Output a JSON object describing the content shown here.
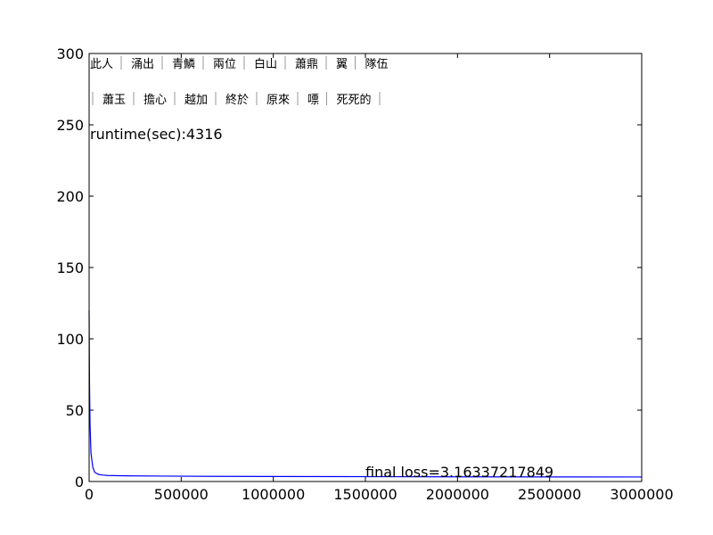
{
  "chart_data": {
    "type": "line",
    "title": "",
    "xlabel": "",
    "ylabel": "",
    "xlim": [
      0,
      3000000
    ],
    "ylim": [
      0,
      300
    ],
    "x_ticks": [
      0,
      500000,
      1000000,
      1500000,
      2000000,
      2500000,
      3000000
    ],
    "x_tick_labels": [
      "0",
      "500000",
      "1000000",
      "1500000",
      "2000000",
      "2500000",
      "3000000"
    ],
    "y_ticks": [
      0,
      50,
      100,
      150,
      200,
      250,
      300
    ],
    "y_tick_labels": [
      "0",
      "50",
      "100",
      "150",
      "200",
      "250",
      "300"
    ],
    "grid": false,
    "series": [
      {
        "color": "#0000ff",
        "x": [
          0,
          2000,
          5000,
          10000,
          20000,
          30000,
          50000,
          75000,
          100000,
          200000,
          400000,
          700000,
          1000000,
          1500000,
          2000000,
          2500000,
          3000000
        ],
        "y": [
          120,
          70,
          40,
          20,
          10,
          6.5,
          5,
          4.5,
          4.2,
          4.0,
          3.8,
          3.6,
          3.5,
          3.4,
          3.3,
          3.2,
          3.16
        ]
      }
    ],
    "annotations": {
      "runtime": "runtime(sec):4316",
      "final_loss": "final loss=3.16337217849"
    },
    "text_rows": [
      [
        "此人",
        "涌出",
        "青鱗",
        "兩位",
        "白山",
        "蕭鼎",
        "翼",
        "隊伍"
      ],
      [
        "蕭玉",
        "擔心",
        "越加",
        "終於",
        "原來",
        "嘌",
        "死死的"
      ]
    ]
  }
}
